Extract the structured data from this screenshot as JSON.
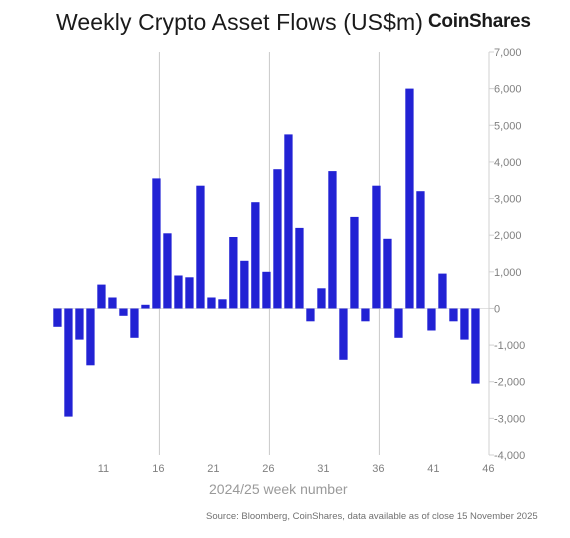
{
  "header": {
    "brand": "CoinShares"
  },
  "chart_data": {
    "type": "bar",
    "title": "Weekly Crypto Asset Flows (US$m)",
    "xlabel": "2024/25 week number",
    "ylabel": "",
    "source": "Source: Bloomberg, CoinShares, data available as of close 15 November 2025",
    "x": [
      7,
      8,
      9,
      10,
      11,
      12,
      13,
      14,
      15,
      16,
      17,
      18,
      19,
      20,
      21,
      22,
      23,
      24,
      25,
      26,
      27,
      28,
      29,
      30,
      31,
      32,
      33,
      34,
      35,
      36,
      37,
      38,
      39,
      40,
      41,
      42,
      43,
      44,
      45,
      46
    ],
    "values": [
      -500,
      -2950,
      -850,
      -1550,
      650,
      300,
      -200,
      -800,
      100,
      3550,
      2050,
      900,
      850,
      3350,
      300,
      250,
      1950,
      1300,
      2900,
      1000,
      3800,
      4750,
      2200,
      -350,
      550,
      3750,
      -1400,
      2500,
      -350,
      3350,
      1900,
      -800,
      6000,
      3200,
      -600,
      950,
      -350,
      -850,
      -2050,
      0
    ],
    "xticks": [
      "11",
      "16",
      "21",
      "26",
      "31",
      "36",
      "41",
      "46"
    ],
    "xtick_values": [
      11,
      16,
      21,
      26,
      31,
      36,
      41,
      46
    ],
    "yticks": [
      "7,000",
      "6,000",
      "5,000",
      "4,000",
      "3,000",
      "2,000",
      "1,000",
      "0",
      "-1,000",
      "-2,000",
      "-3,000",
      "-4,000"
    ],
    "ytick_values": [
      7000,
      6000,
      5000,
      4000,
      3000,
      2000,
      1000,
      0,
      -1000,
      -2000,
      -3000,
      -4000
    ],
    "ylim": [
      -4000,
      7000
    ],
    "bar_color": "#2222d4",
    "grid": "vertical gridlines at week 16, 26, 36",
    "grid_weeks": [
      16,
      26,
      36
    ]
  }
}
